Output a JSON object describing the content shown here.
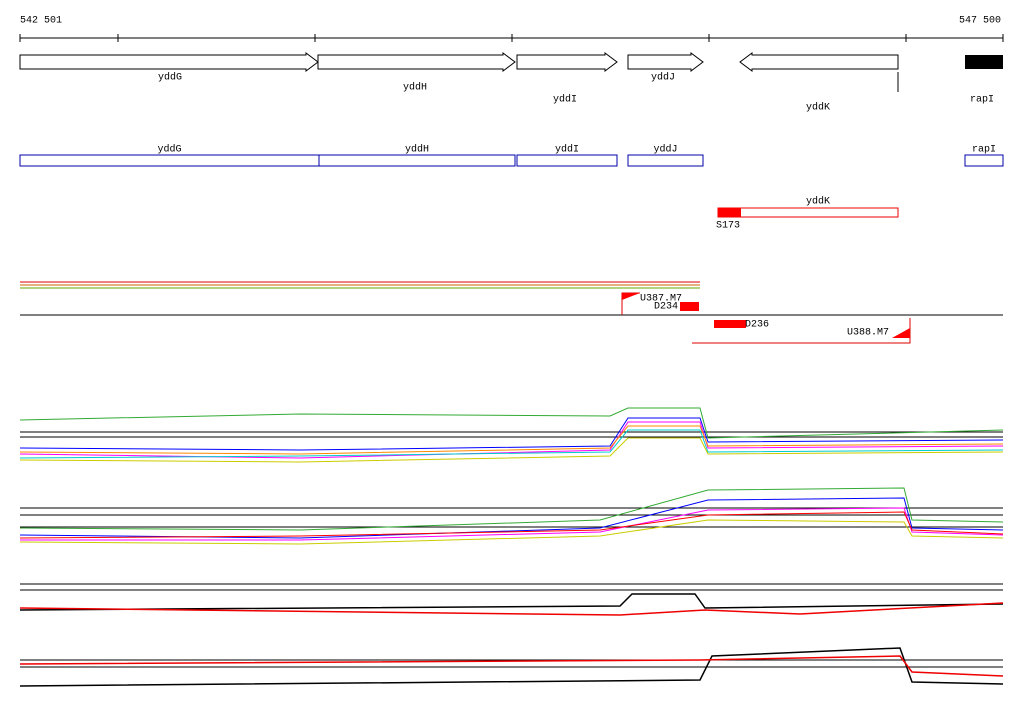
{
  "ruler": {
    "start": "542 501",
    "end": "547 500"
  },
  "genes": [
    "yddG",
    "yddH",
    "yddI",
    "yddJ",
    "yddK",
    "rapI"
  ],
  "cds": [
    "yddG",
    "yddH",
    "yddI",
    "yddJ",
    "rapI"
  ],
  "region": {
    "label": "yddK",
    "site": "S173"
  },
  "features": [
    "U387.M7",
    "D234",
    "D236",
    "U388.M7"
  ]
}
